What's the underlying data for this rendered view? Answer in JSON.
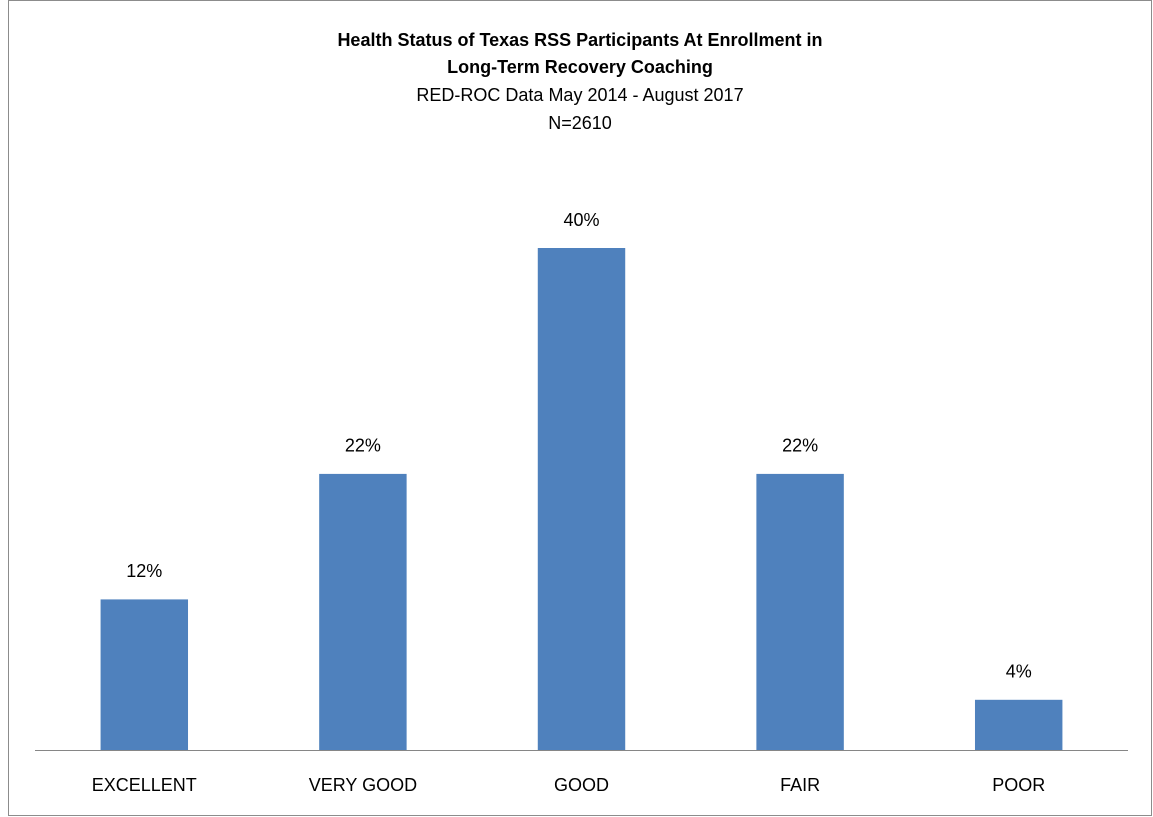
{
  "chart_data": {
    "type": "bar",
    "title": [
      "Health Status of Texas RSS Participants At Enrollment in",
      "Long-Term Recovery Coaching"
    ],
    "subtitle": [
      "RED-ROC Data May 2014 - August 2017",
      "N=2610"
    ],
    "categories": [
      "EXCELLENT",
      "VERY GOOD",
      "GOOD",
      "FAIR",
      "POOR"
    ],
    "values": [
      12,
      22,
      40,
      22,
      4
    ],
    "value_labels": [
      "12%",
      "22%",
      "40%",
      "22%",
      "4%"
    ],
    "color": "#4f81bd"
  }
}
